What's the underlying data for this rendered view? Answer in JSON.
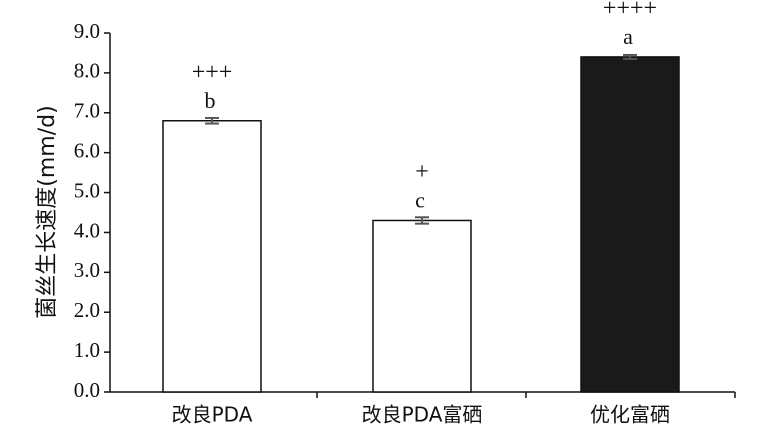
{
  "chart_data": {
    "type": "bar",
    "ylabel": "菌丝生长速度(mm/d)",
    "xlabel": "",
    "ylim": [
      0,
      9
    ],
    "yticks": [
      "0.0",
      "1.0",
      "2.0",
      "3.0",
      "4.0",
      "5.0",
      "6.0",
      "7.0",
      "8.0",
      "9.0"
    ],
    "categories": [
      "改良PDA",
      "改良PDA富硒",
      "优化富硒"
    ],
    "values": [
      6.8,
      4.3,
      8.4
    ],
    "errors": [
      0.07,
      0.08,
      0.05
    ],
    "fills": [
      "#ffffff",
      "#ffffff",
      "#1a1a1a"
    ],
    "letters": [
      "b",
      "c",
      "a"
    ],
    "plus_marks": [
      "+++",
      "+",
      "++++"
    ],
    "grid": false,
    "legend": "none"
  }
}
